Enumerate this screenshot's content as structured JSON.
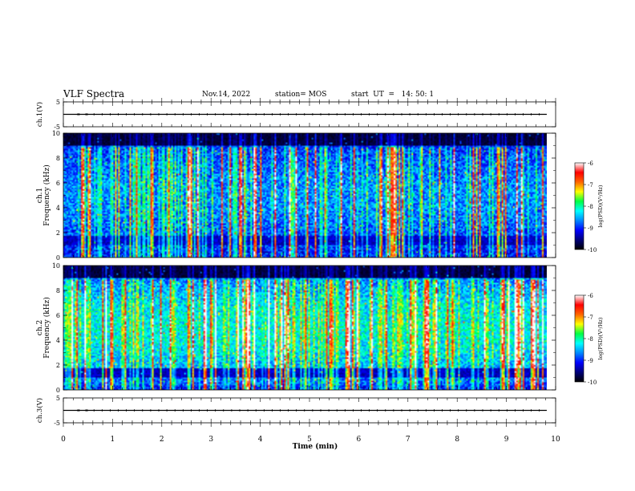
{
  "header": {
    "title": "VLF Spectra",
    "date": "Nov.14, 2022",
    "station": "station= MOS",
    "start": "start  UT  =   14: 50: 1"
  },
  "chart_data": [
    {
      "type": "line",
      "title": "",
      "ylabel": "ch.1(V)",
      "ylim": [
        -5,
        5
      ],
      "yticks": [
        "5",
        "-5"
      ],
      "x": [
        0,
        9.82
      ],
      "y": [
        0,
        0
      ]
    },
    {
      "type": "heatmap",
      "ylabel_top": "ch.1",
      "ylabel": "Frequency (kHz)",
      "ylim": [
        0,
        10
      ],
      "yticks": [
        "0",
        "2",
        "4",
        "6",
        "8",
        "10"
      ],
      "xlim": [
        0,
        10
      ],
      "data_extent_min": 9.82,
      "colorbar": {
        "label": "log(PSD)(V²/Hz)",
        "range": [
          -10,
          -6
        ],
        "ticks": [
          "-6",
          "-7",
          "-8",
          "-9",
          "-10"
        ]
      },
      "colorscale": [
        "#000000",
        "#00007a",
        "#0000ff",
        "#0088ff",
        "#00ffff",
        "#00ff44",
        "#ffff00",
        "#ff6600",
        "#ff0000",
        "#ffffff"
      ]
    },
    {
      "type": "heatmap",
      "ylabel_top": "ch.2",
      "ylabel": "Frequency (kHz)",
      "ylim": [
        0,
        10
      ],
      "yticks": [
        "0",
        "2",
        "4",
        "6",
        "8",
        "10"
      ],
      "xlim": [
        0,
        10
      ],
      "data_extent_min": 9.82,
      "colorbar": {
        "label": "log(PSD)(V²/Hz)",
        "range": [
          -10,
          -6
        ],
        "ticks": [
          "-6",
          "-7",
          "-8",
          "-9",
          "-10"
        ]
      },
      "colorscale": [
        "#000000",
        "#00007a",
        "#0000ff",
        "#0088ff",
        "#00ffff",
        "#00ff44",
        "#ffff00",
        "#ff6600",
        "#ff0000",
        "#ffffff"
      ]
    },
    {
      "type": "line",
      "ylabel": "ch.3(V)",
      "ylim": [
        -5,
        5
      ],
      "yticks": [
        "5",
        "-5"
      ],
      "x": [
        0,
        9.82
      ],
      "y": [
        0,
        0
      ]
    }
  ],
  "xaxis": {
    "label": "Time (min)",
    "range": [
      0,
      10
    ],
    "ticks": [
      "0",
      "1",
      "2",
      "3",
      "4",
      "5",
      "6",
      "7",
      "8",
      "9",
      "10"
    ]
  }
}
